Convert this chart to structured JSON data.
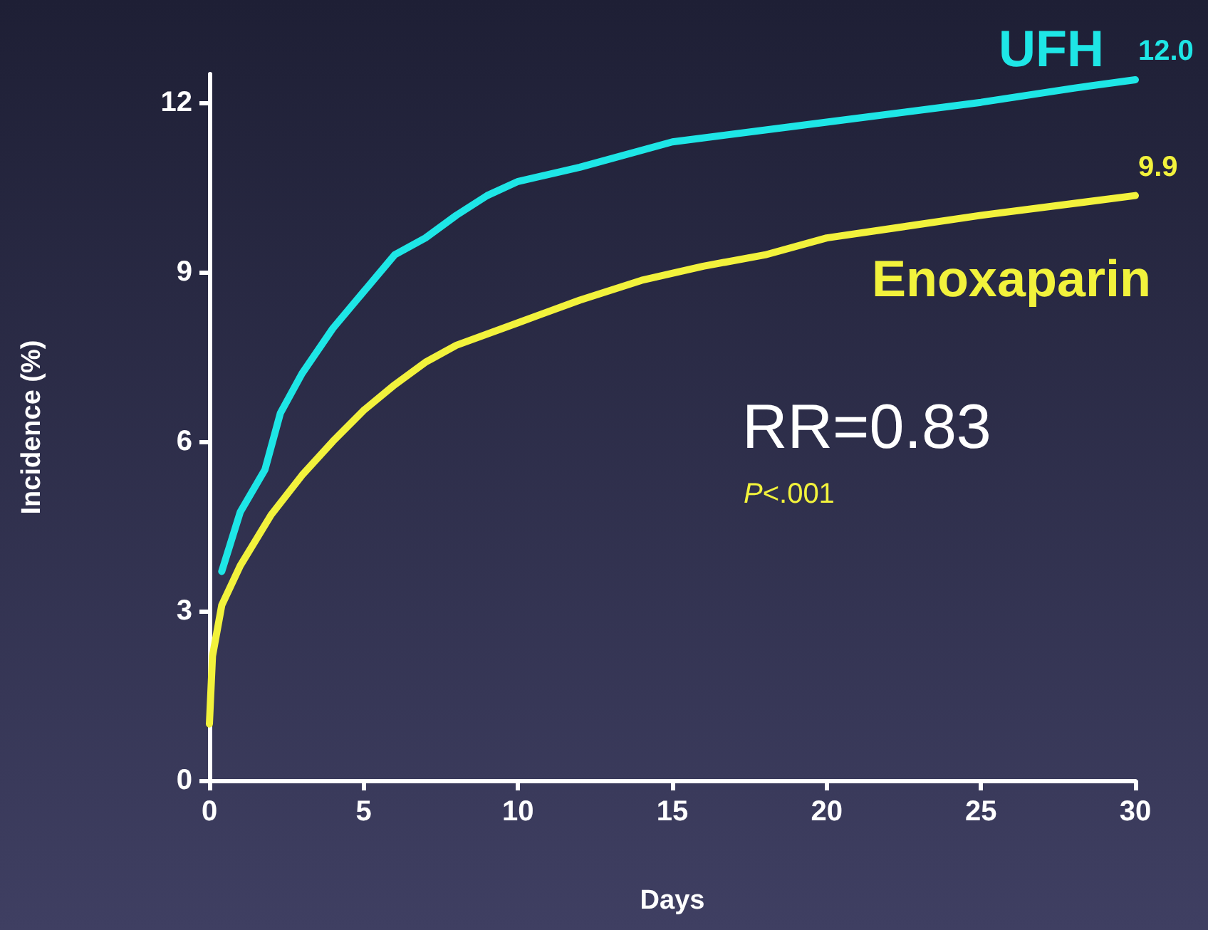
{
  "chart_data": {
    "type": "line",
    "xlabel": "Days",
    "ylabel": "Incidence (%)",
    "xlim": [
      0,
      30
    ],
    "xticks": [
      0,
      5,
      10,
      15,
      20,
      25,
      30
    ],
    "ylim": [
      0,
      12.5
    ],
    "yticks": [
      0,
      3,
      6,
      9,
      12
    ],
    "grid": false,
    "legend": false,
    "marker": "none",
    "line_style": "solid",
    "series": [
      {
        "name": "UFH",
        "color": "#1ee6e6",
        "x": [
          0.4,
          1,
          1.8,
          2.3,
          3,
          4,
          5,
          6,
          7,
          8,
          9,
          10,
          12,
          15,
          20,
          25,
          28,
          30
        ],
        "values": [
          3.7,
          4.75,
          5.5,
          6.5,
          7.2,
          8.0,
          8.65,
          9.3,
          9.6,
          10.0,
          10.35,
          10.6,
          10.85,
          11.3,
          11.65,
          12.0,
          12.25,
          12.4
        ]
      },
      {
        "name": "Enoxaparin",
        "color": "#f2f23c",
        "x": [
          0,
          0.1,
          0.4,
          1,
          2,
          3,
          4,
          5,
          6,
          7,
          8,
          10,
          12,
          14,
          16,
          18,
          20,
          25,
          30
        ],
        "values": [
          1.0,
          2.2,
          3.1,
          3.8,
          4.7,
          5.4,
          6.0,
          6.55,
          7.0,
          7.4,
          7.7,
          8.1,
          8.5,
          8.85,
          9.1,
          9.3,
          9.6,
          10.0,
          10.35
        ]
      }
    ],
    "annotations": [
      {
        "text": "12.0",
        "x": 30,
        "y": 12.4
      },
      {
        "text": "9.9",
        "x": 30,
        "y": 10.35
      },
      "RR=0.83",
      "P<.001"
    ]
  }
}
